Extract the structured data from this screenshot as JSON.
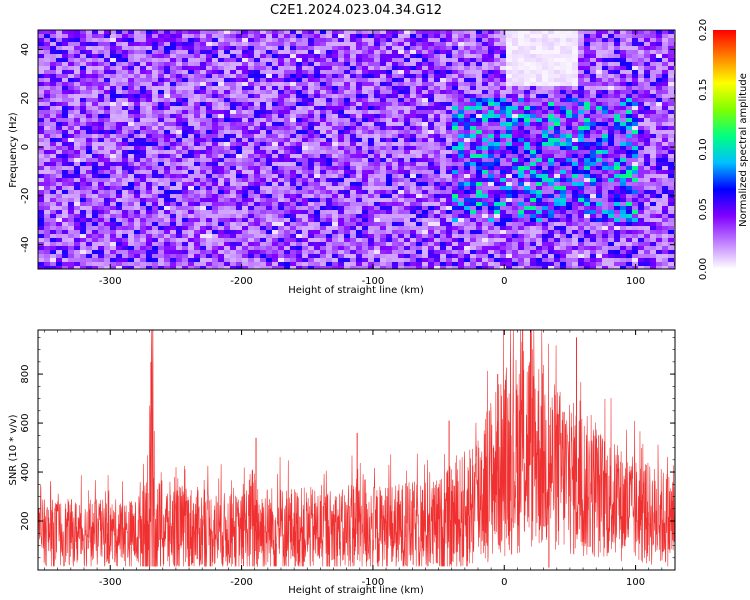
{
  "title": "C2E1.2024.023.04.34.G12",
  "chart_data": [
    {
      "type": "heatmap",
      "xlabel": "Height of straight line (km)",
      "ylabel": "Frequency (Hz)",
      "xlim": [
        -355,
        130
      ],
      "ylim": [
        -50,
        48
      ],
      "xticks": [
        "-300",
        "-200",
        "-100",
        "0",
        "100"
      ],
      "xtick_values": [
        -300,
        -200,
        -100,
        0,
        100
      ],
      "yticks": [
        "-40",
        "-20",
        "0",
        "20",
        "40"
      ],
      "ytick_values": [
        -40,
        -20,
        0,
        20,
        40
      ],
      "colorbar": {
        "label": "Normalized spectral amplitude",
        "range": [
          0,
          0.2
        ],
        "ticks": [
          "0.00",
          "0.05",
          "0.10",
          "0.15",
          "0.20"
        ],
        "tick_values": [
          0,
          0.05,
          0.1,
          0.15,
          0.2
        ],
        "colormap": [
          "#ffffff",
          "#c080ff",
          "#8000ff",
          "#0000ff",
          "#00c0ff",
          "#00ff80",
          "#80ff00",
          "#ffff00",
          "#ff8000",
          "#ff0000"
        ]
      },
      "features": [
        {
          "region": "background",
          "x": [
            -355,
            130
          ],
          "y": [
            -50,
            48
          ],
          "level": 0.04
        },
        {
          "region": "enhanced-band",
          "x": [
            -40,
            100
          ],
          "y": [
            -30,
            20
          ],
          "level": 0.07
        },
        {
          "region": "low-amplitude-patch",
          "x": [
            0,
            55
          ],
          "y": [
            25,
            48
          ],
          "level": 0.005
        }
      ]
    },
    {
      "type": "line",
      "xlabel": "Height of straight line (km)",
      "ylabel": "SNR (10 * v/v)",
      "xlim": [
        -355,
        130
      ],
      "ylim": [
        0,
        980
      ],
      "xticks": [
        "-300",
        "-200",
        "-100",
        "0",
        "100"
      ],
      "xtick_values": [
        -300,
        -200,
        -100,
        0,
        100
      ],
      "yticks": [
        "200",
        "400",
        "600",
        "800"
      ],
      "ytick_values": [
        200,
        400,
        600,
        800
      ],
      "color": "#f03030",
      "profile": [
        {
          "x": -355,
          "mean": 150,
          "amp": 140
        },
        {
          "x": -280,
          "mean": 150,
          "amp": 140
        },
        {
          "x": -272,
          "mean": 220,
          "amp": 300
        },
        {
          "x": -268,
          "mean": 280,
          "amp": 560
        },
        {
          "x": -264,
          "mean": 170,
          "amp": 200
        },
        {
          "x": -200,
          "mean": 155,
          "amp": 150
        },
        {
          "x": -190,
          "mean": 200,
          "amp": 260
        },
        {
          "x": -185,
          "mean": 170,
          "amp": 180
        },
        {
          "x": -120,
          "mean": 160,
          "amp": 170
        },
        {
          "x": -110,
          "mean": 210,
          "amp": 230
        },
        {
          "x": -100,
          "mean": 165,
          "amp": 180
        },
        {
          "x": -50,
          "mean": 175,
          "amp": 200
        },
        {
          "x": -30,
          "mean": 230,
          "amp": 260
        },
        {
          "x": -10,
          "mean": 380,
          "amp": 340
        },
        {
          "x": 10,
          "mean": 480,
          "amp": 420
        },
        {
          "x": 20,
          "mean": 520,
          "amp": 450
        },
        {
          "x": 35,
          "mean": 430,
          "amp": 360
        },
        {
          "x": 55,
          "mean": 360,
          "amp": 320
        },
        {
          "x": 80,
          "mean": 290,
          "amp": 250
        },
        {
          "x": 100,
          "mean": 240,
          "amp": 220
        },
        {
          "x": 130,
          "mean": 200,
          "amp": 200
        }
      ],
      "spikes": [
        {
          "x": -269,
          "value": 850
        },
        {
          "x": -270,
          "value": 10
        },
        {
          "x": -189,
          "value": 540
        },
        {
          "x": -112,
          "value": 560
        },
        {
          "x": -42,
          "value": 610
        },
        {
          "x": -5,
          "value": 800
        },
        {
          "x": 14,
          "value": 980
        },
        {
          "x": 20,
          "value": 980
        },
        {
          "x": 34,
          "value": 10
        },
        {
          "x": 55,
          "value": 950
        }
      ]
    }
  ]
}
